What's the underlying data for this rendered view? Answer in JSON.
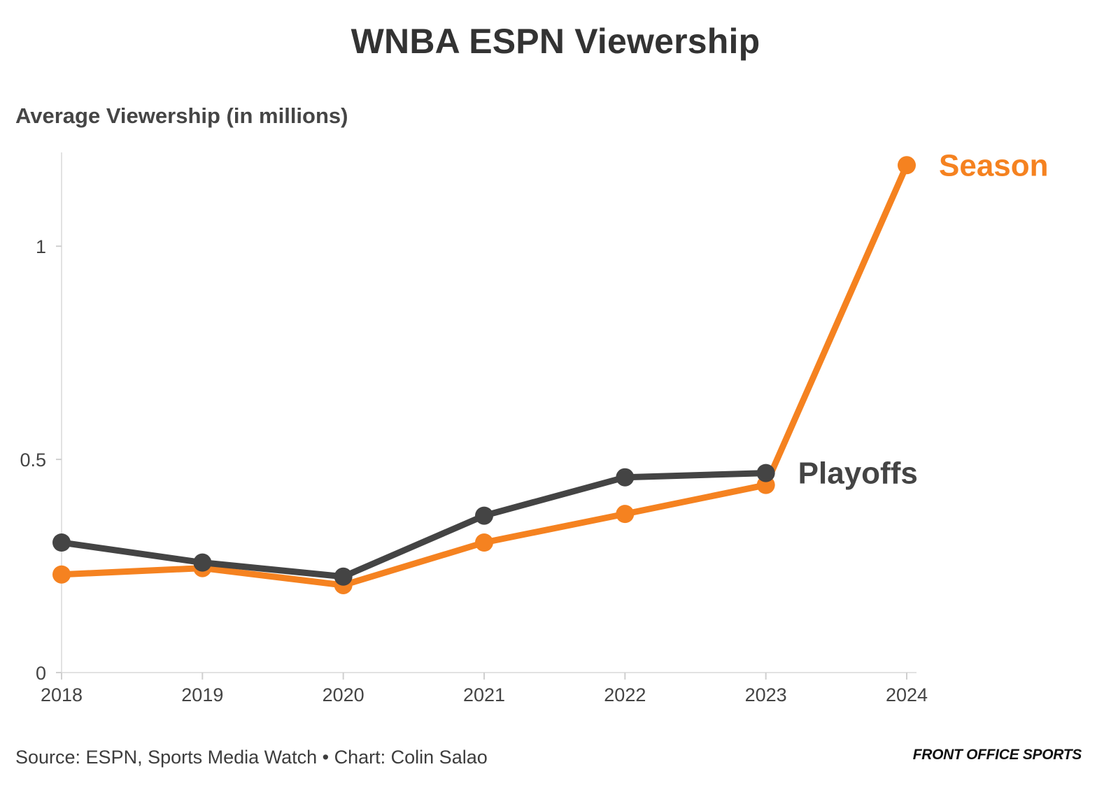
{
  "chart_data": {
    "type": "line",
    "title": "WNBA ESPN Viewership",
    "ylabel": "Average Viewership (in millions)",
    "xlabel": "",
    "x": [
      "2018",
      "2019",
      "2020",
      "2021",
      "2022",
      "2023",
      "2024"
    ],
    "ylim": [
      0,
      1.22
    ],
    "yticks": [
      0,
      0.5,
      1
    ],
    "ytick_labels": [
      "0",
      "0.5",
      "1"
    ],
    "grid": false,
    "series": [
      {
        "name": "Season",
        "color": "#f58220",
        "values": [
          0.23,
          0.245,
          0.205,
          0.305,
          0.372,
          0.44,
          1.19
        ]
      },
      {
        "name": "Playoffs",
        "color": "#444444",
        "values": [
          0.305,
          0.258,
          0.225,
          0.368,
          0.458,
          0.468,
          null
        ]
      }
    ]
  },
  "footer": {
    "source": "Source: ESPN, Sports Media Watch • Chart: Colin Salao",
    "logo": "FRONT OFFICE SPORTS"
  }
}
